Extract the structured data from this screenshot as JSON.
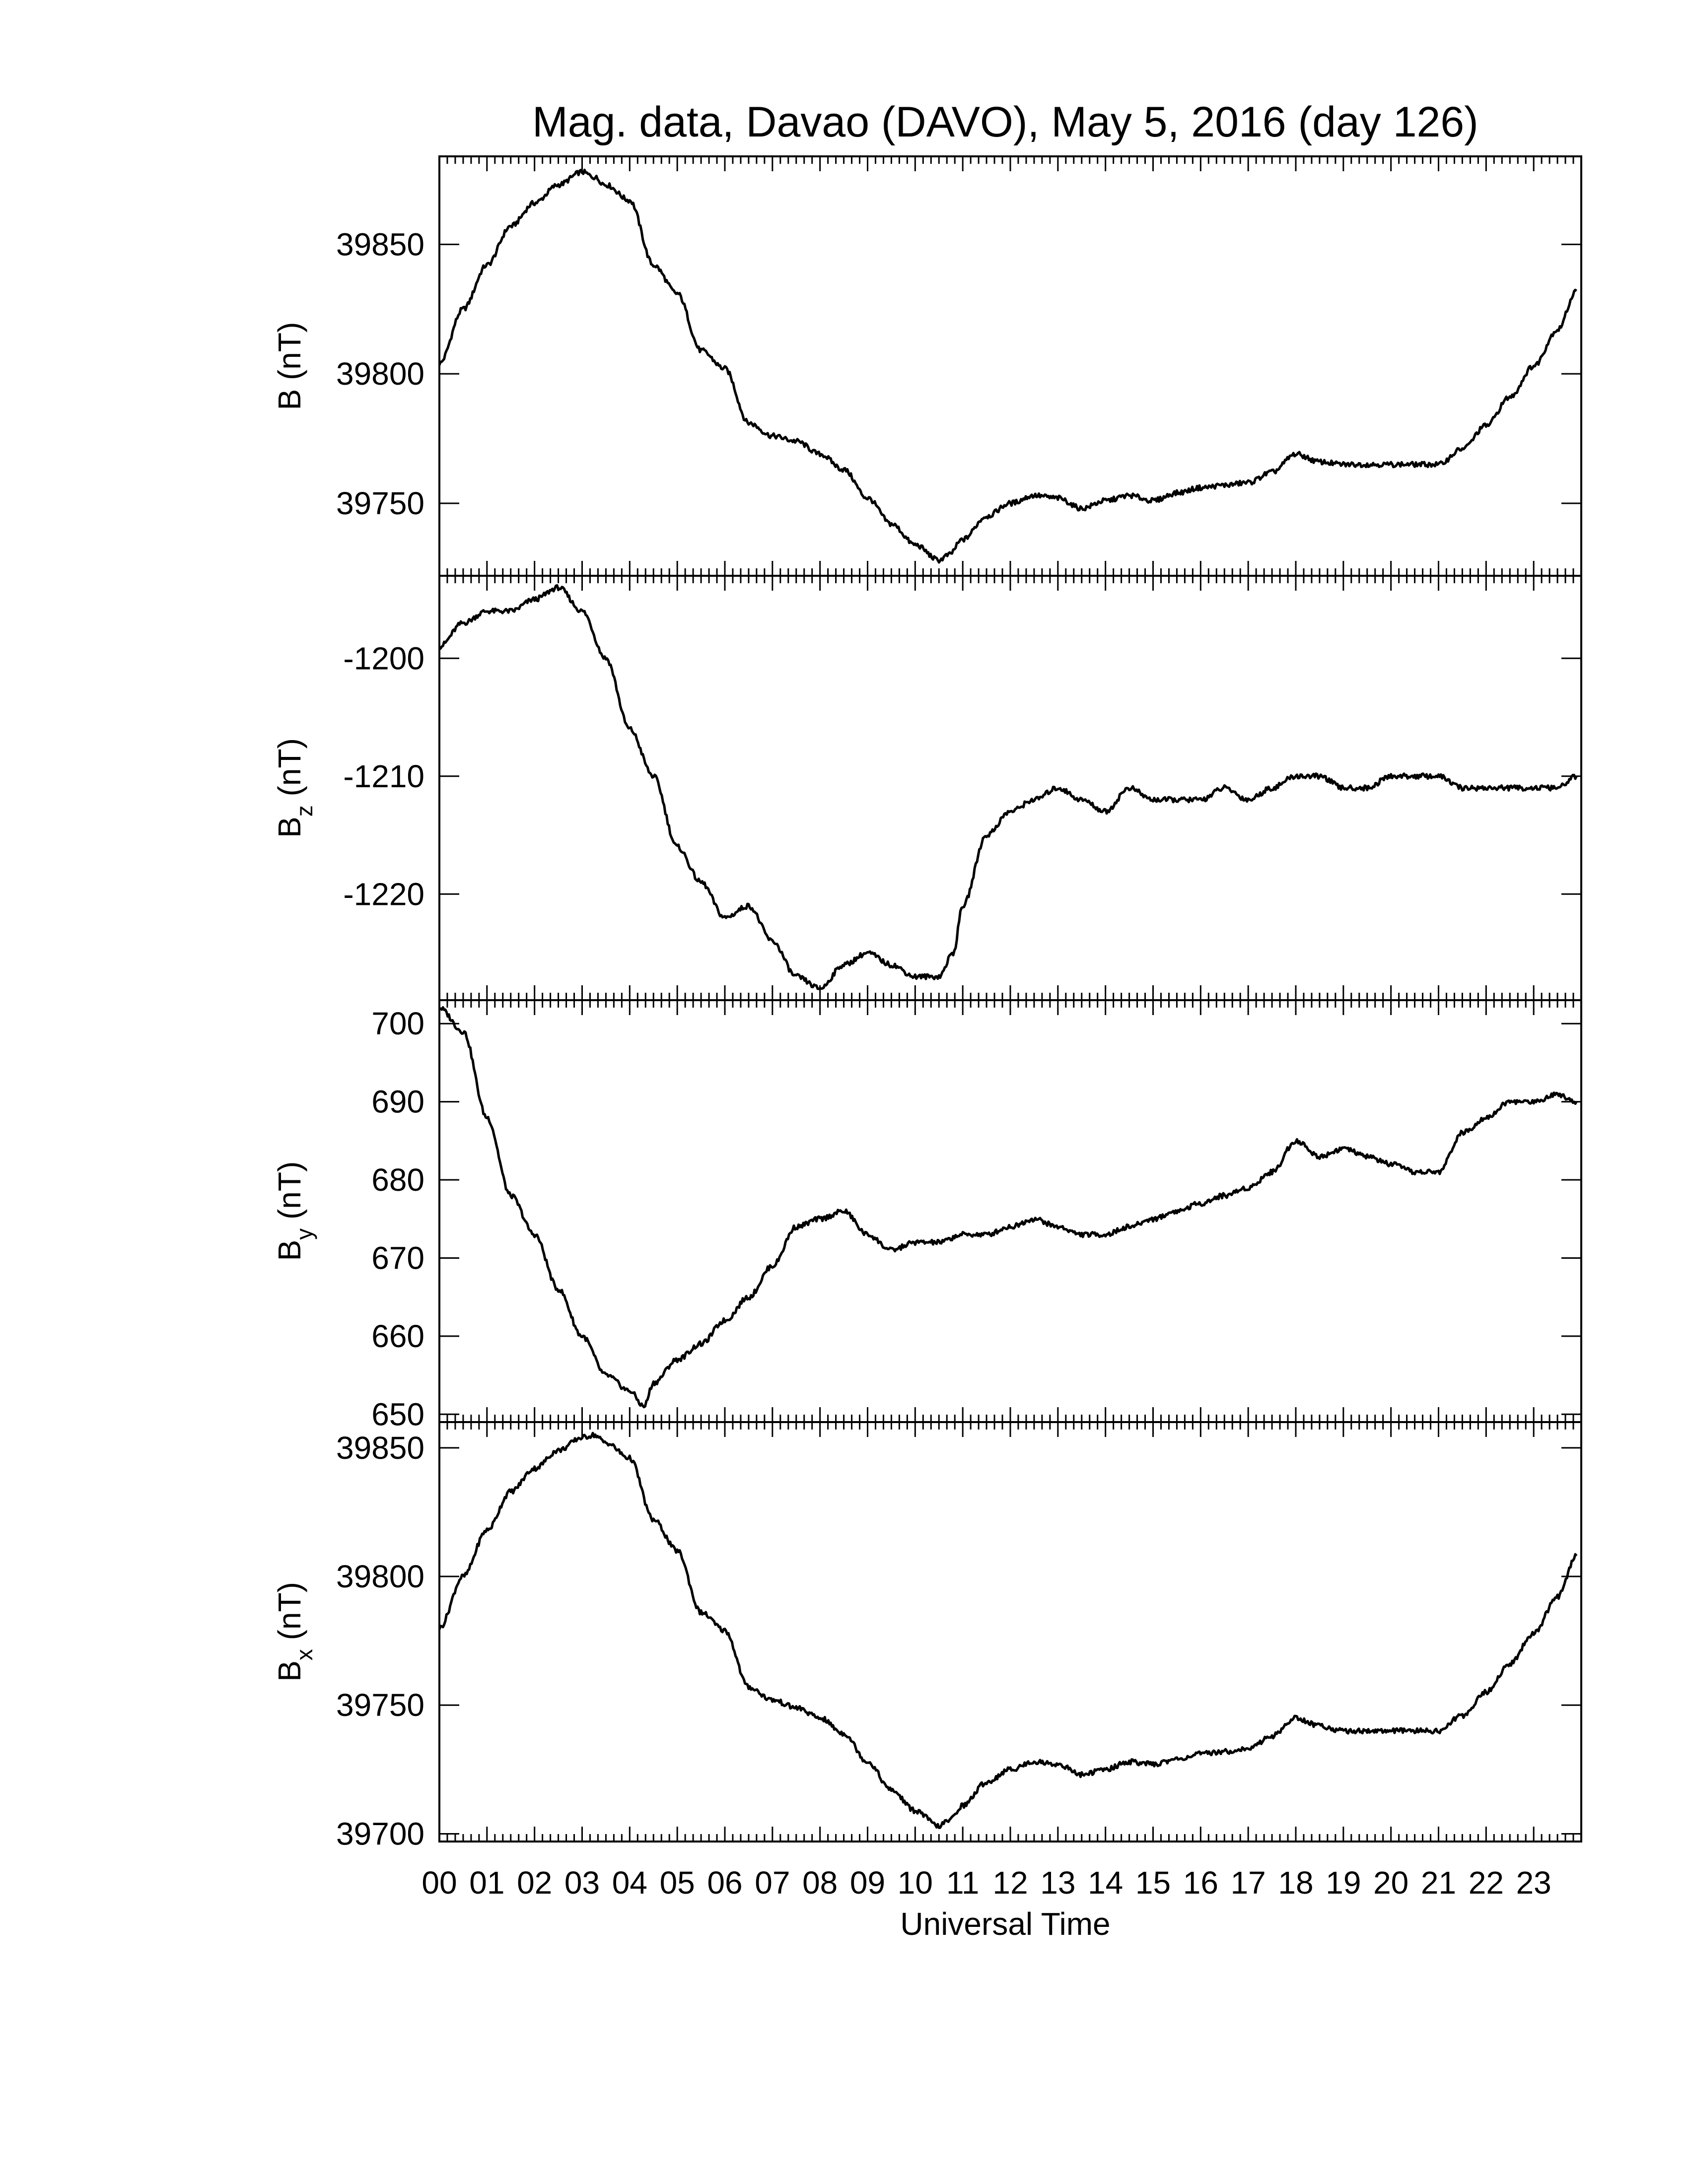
{
  "title": "Mag. data, Davao (DAVO), May 5, 2016 (day 126)",
  "xlabel": "Universal Time",
  "colors": {
    "line": "#000000",
    "frame": "#000000",
    "background": "#ffffff"
  },
  "chart_data": [
    {
      "type": "line",
      "panel": "B",
      "ylabel_main": "B",
      "ylabel_sub": "",
      "ylabel_unit": "(nT)",
      "ylim": [
        39722,
        39884
      ],
      "yticks": [
        39750,
        39800,
        39850
      ],
      "x": [
        0,
        0.5,
        1,
        1.5,
        2,
        2.5,
        3,
        3.25,
        3.5,
        4,
        4.5,
        5,
        5.5,
        6,
        6.5,
        7,
        7.5,
        8,
        8.5,
        9,
        9.5,
        10,
        10.5,
        10.7,
        11,
        11.5,
        12,
        12.5,
        13,
        13.5,
        14,
        14.5,
        15,
        15.5,
        16,
        16.5,
        17,
        17.5,
        18,
        18.5,
        19,
        19.5,
        20,
        20.5,
        21,
        21.5,
        22,
        22.5,
        23,
        23.5,
        23.9
      ],
      "values": [
        39804,
        39825,
        39842,
        39857,
        39866,
        39873,
        39878,
        39876,
        39873,
        39867,
        39842,
        39831,
        39809,
        39802,
        39781,
        39776,
        39774,
        39769,
        39763,
        39752,
        39742,
        39734,
        39728,
        39730,
        39736,
        39745,
        39750,
        39753,
        39752,
        39748,
        39751,
        39753,
        39751,
        39754,
        39756,
        39757,
        39758,
        39762,
        39769,
        39766,
        39765,
        39765,
        39765,
        39765,
        39765,
        39771,
        39780,
        39791,
        39803,
        39817,
        39832
      ],
      "series": [
        {
          "name": "B",
          "color": "#000000"
        }
      ]
    },
    {
      "type": "line",
      "panel": "Bz",
      "ylabel_main": "B",
      "ylabel_sub": "z",
      "ylabel_unit": "(nT)",
      "ylim": [
        -1229,
        -1193
      ],
      "yticks": [
        -1200,
        -1210,
        -1220
      ],
      "x": [
        0,
        0.5,
        1,
        1.5,
        2,
        2.5,
        3,
        3.5,
        4,
        4.5,
        5,
        5.5,
        6,
        6.5,
        7,
        7.5,
        8,
        8.5,
        9,
        9.5,
        10,
        10.5,
        10.8,
        11,
        11.5,
        12,
        12.5,
        13,
        13.5,
        14,
        14.5,
        15,
        15.5,
        16,
        16.5,
        17,
        17.5,
        18,
        18.5,
        19,
        19.5,
        20,
        20.5,
        21,
        21.5,
        22,
        22.5,
        23,
        23.5,
        23.9
      ],
      "values": [
        -1199,
        -1197,
        -1196,
        -1196,
        -1195,
        -1194,
        -1196,
        -1200,
        -1206,
        -1210,
        -1216,
        -1219,
        -1222,
        -1221,
        -1224,
        -1227,
        -1228,
        -1226,
        -1225,
        -1226,
        -1227,
        -1227,
        -1225,
        -1221,
        -1215,
        -1213,
        -1212,
        -1211,
        -1212,
        -1213,
        -1211,
        -1212,
        -1212,
        -1212,
        -1211,
        -1212,
        -1211,
        -1210,
        -1210,
        -1211,
        -1211,
        -1210,
        -1210,
        -1210,
        -1211,
        -1211,
        -1211,
        -1211,
        -1211,
        -1210
      ],
      "series": [
        {
          "name": "Bz",
          "color": "#000000"
        }
      ]
    },
    {
      "type": "line",
      "panel": "By",
      "ylabel_main": "B",
      "ylabel_sub": "y",
      "ylabel_unit": "(nT)",
      "ylim": [
        649,
        703
      ],
      "yticks": [
        650,
        660,
        670,
        680,
        690,
        700
      ],
      "x": [
        0,
        0.5,
        1,
        1.5,
        2,
        2.5,
        3,
        3.5,
        4,
        4.3,
        4.5,
        5,
        5.5,
        6,
        6.5,
        7,
        7.5,
        8,
        8.5,
        9,
        9.5,
        10,
        10.5,
        11,
        11.5,
        12,
        12.5,
        13,
        13.5,
        14,
        14.5,
        15,
        15.5,
        16,
        16.5,
        17,
        17.5,
        18,
        18.5,
        19,
        19.5,
        20,
        20.5,
        21,
        21.5,
        22,
        22.5,
        23,
        23.5,
        23.9
      ],
      "values": [
        702,
        699,
        688,
        678,
        673,
        666,
        660,
        655,
        653,
        651,
        654,
        657,
        659,
        662,
        665,
        669,
        674,
        675,
        676,
        673,
        671,
        672,
        672,
        673,
        673,
        674,
        675,
        674,
        673,
        673,
        674,
        675,
        676,
        677,
        678,
        679,
        681,
        685,
        683,
        684,
        683,
        682,
        681,
        681,
        686,
        688,
        690,
        690,
        691,
        690
      ],
      "series": [
        {
          "name": "By",
          "color": "#000000"
        }
      ]
    },
    {
      "type": "line",
      "panel": "Bx",
      "ylabel_main": "B",
      "ylabel_sub": "x",
      "ylabel_unit": "(nT)",
      "ylim": [
        39697,
        39860
      ],
      "yticks": [
        39700,
        39750,
        39800,
        39850
      ],
      "x": [
        0,
        0.5,
        1,
        1.5,
        2,
        2.5,
        3,
        3.25,
        3.5,
        4,
        4.5,
        5,
        5.5,
        6,
        6.5,
        7,
        7.5,
        8,
        8.5,
        9,
        9.5,
        10,
        10.5,
        10.7,
        11,
        11.5,
        12,
        12.5,
        13,
        13.5,
        14,
        14.5,
        15,
        15.5,
        16,
        16.5,
        17,
        17.5,
        18,
        18.5,
        19,
        19.5,
        20,
        20.5,
        21,
        21.5,
        22,
        22.5,
        23,
        23.5,
        23.9
      ],
      "values": [
        39780,
        39800,
        39818,
        39833,
        39842,
        39849,
        39854,
        39855,
        39852,
        39846,
        39822,
        39810,
        39786,
        39779,
        39757,
        39752,
        39749,
        39745,
        39739,
        39728,
        39717,
        39709,
        39703,
        39705,
        39711,
        39720,
        39725,
        39728,
        39727,
        39723,
        39725,
        39728,
        39727,
        39729,
        39731,
        39732,
        39733,
        39738,
        39745,
        39742,
        39740,
        39740,
        39740,
        39740,
        39740,
        39746,
        39755,
        39766,
        39778,
        39792,
        39808
      ],
      "series": [
        {
          "name": "Bx",
          "color": "#000000"
        }
      ]
    }
  ],
  "xticks": [
    "00",
    "01",
    "02",
    "03",
    "04",
    "05",
    "06",
    "07",
    "08",
    "09",
    "10",
    "11",
    "12",
    "13",
    "14",
    "15",
    "16",
    "17",
    "18",
    "19",
    "20",
    "21",
    "22",
    "23"
  ],
  "xlim": [
    0,
    24
  ]
}
